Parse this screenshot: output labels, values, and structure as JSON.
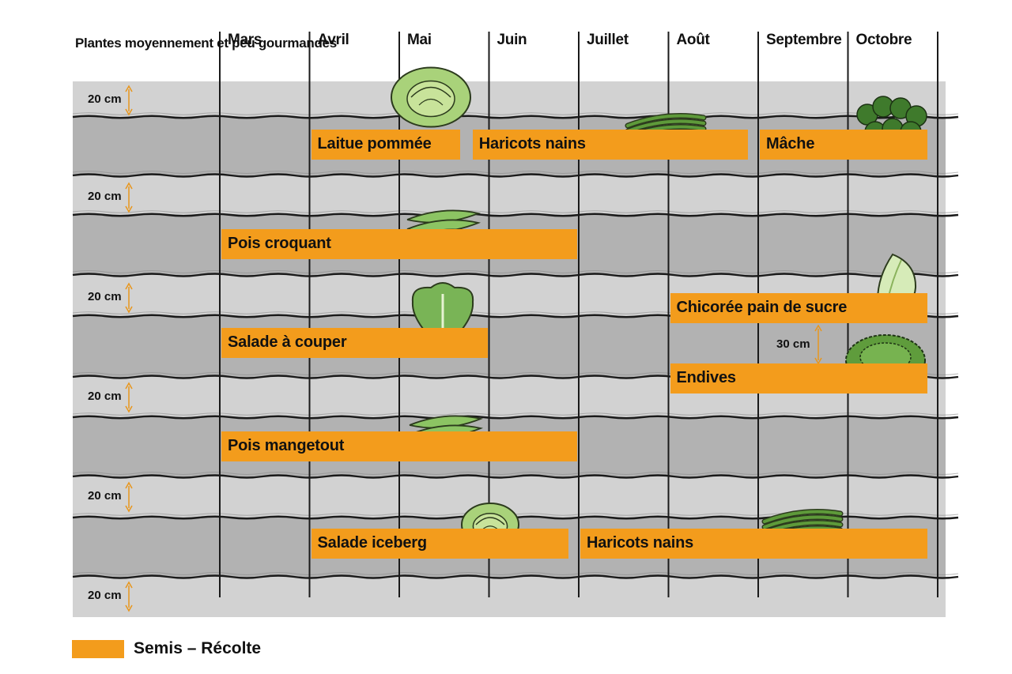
{
  "chart_data": {
    "type": "gantt",
    "title": "Plantes moyennement et peu gourmandes",
    "categories": [
      "Mars",
      "Avril",
      "Mai",
      "Juin",
      "Juillet",
      "Août",
      "Septembre",
      "Octobre"
    ],
    "row_spacing_label": "20 cm",
    "inner_spacing_label": "30 cm",
    "legend": [
      {
        "label": "Semis – Récolte",
        "color": "#f39c1c"
      }
    ],
    "bar_color": "#f39c1c",
    "rows": [
      {
        "bars": [
          {
            "label": "Laitue pommée",
            "start": 1.0,
            "end": 2.7,
            "icon": "butterhead-lettuce-icon"
          },
          {
            "label": "Haricots nains",
            "start": 2.8,
            "end": 5.9,
            "icon": "green-beans-icon"
          },
          {
            "label": "Mâche",
            "start": 6.0,
            "end": 7.9,
            "icon": "lambs-lettuce-icon"
          }
        ]
      },
      {
        "bars": [
          {
            "label": "Pois croquant",
            "start": 0.0,
            "end": 4.0,
            "icon": "snow-peas-icon"
          }
        ]
      },
      {
        "bars": [
          {
            "label": "Salade à couper",
            "start": 0.0,
            "end": 3.0,
            "icon": "leaf-lettuce-icon"
          },
          {
            "label": "Chicorée pain de sucre",
            "start": 5.0,
            "end": 7.9,
            "icon": "sugarloaf-chicory-icon"
          },
          {
            "label": "Endives",
            "start": 5.0,
            "end": 7.9,
            "icon": "curly-endive-icon"
          }
        ]
      },
      {
        "bars": [
          {
            "label": "Pois mangetout",
            "start": 0.0,
            "end": 4.0,
            "icon": "open-pea-pods-icon"
          }
        ]
      },
      {
        "bars": [
          {
            "label": "Salade iceberg",
            "start": 1.0,
            "end": 3.9,
            "icon": "iceberg-lettuce-icon"
          },
          {
            "label": "Haricots nains",
            "start": 4.0,
            "end": 7.9,
            "icon": "green-beans-icon"
          }
        ]
      }
    ]
  }
}
